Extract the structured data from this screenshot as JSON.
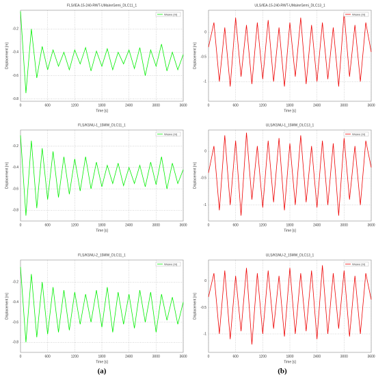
{
  "panel_labels": [
    "(a)",
    "(b)"
  ],
  "chart_data": [
    {
      "type": "line",
      "title": "FLS/IEA-15-240-RWT-UMaineSemi_DLC11_1",
      "xlabel": "Time [s]",
      "ylabel": "Displacement [m]",
      "legend": "upper right",
      "grid": true,
      "x": [
        0,
        120,
        240,
        360,
        480,
        600,
        720,
        840,
        960,
        1080,
        1200,
        1320,
        1440,
        1560,
        1680,
        1800,
        1920,
        2040,
        2160,
        2280,
        2400,
        2520,
        2640,
        2760,
        2880,
        3000,
        3120,
        3240,
        3360,
        3480,
        3600
      ],
      "series": [
        {
          "name": "Weave [m]",
          "color": "#00ee00",
          "values": [
            -0.05,
            -0.75,
            -0.2,
            -0.62,
            -0.35,
            -0.55,
            -0.38,
            -0.52,
            -0.4,
            -0.55,
            -0.38,
            -0.5,
            -0.36,
            -0.56,
            -0.39,
            -0.52,
            -0.37,
            -0.55,
            -0.4,
            -0.5,
            -0.38,
            -0.54,
            -0.36,
            -0.6,
            -0.38,
            -0.52,
            -0.33,
            -0.56,
            -0.4,
            -0.55,
            -0.42
          ]
        }
      ],
      "xlim": [
        0,
        3600
      ],
      "xticks": [
        0,
        600,
        1200,
        1800,
        2400,
        3000,
        3600
      ],
      "ylim": [
        -0.82,
        -0.04
      ],
      "yticks": [
        -0.8,
        -0.6,
        -0.4,
        -0.2
      ]
    },
    {
      "type": "line",
      "title": "ULS/IEA-15-240-RWT-UMaineSemi_DLC13_1",
      "xlabel": "Time [s]",
      "ylabel": "Displacement [m]",
      "legend": "upper right",
      "grid": true,
      "x": [
        0,
        120,
        240,
        360,
        480,
        600,
        720,
        840,
        960,
        1080,
        1200,
        1320,
        1440,
        1560,
        1680,
        1800,
        1920,
        2040,
        2160,
        2280,
        2400,
        2520,
        2640,
        2760,
        2880,
        3000,
        3120,
        3240,
        3360,
        3480,
        3600
      ],
      "series": [
        {
          "name": "Weave [m]",
          "color": "#ee0000",
          "values": [
            -0.3,
            0.2,
            -1.0,
            0.1,
            -1.1,
            0.3,
            -0.9,
            0.15,
            -1.05,
            0.2,
            -0.95,
            0.25,
            -1.0,
            0.1,
            -1.1,
            0.2,
            -0.9,
            0.3,
            -1.05,
            0.15,
            -1.0,
            0.2,
            -0.95,
            0.1,
            -1.1,
            0.4,
            -0.9,
            0.15,
            -1.0,
            0.2,
            -0.4
          ]
        }
      ],
      "xlim": [
        0,
        3600
      ],
      "xticks": [
        0,
        600,
        1200,
        1800,
        2400,
        3000,
        3600
      ],
      "ylim": [
        -1.4,
        0.45
      ],
      "yticks": [
        -1,
        -0.5,
        0
      ]
    },
    {
      "type": "line",
      "title": "FLS/KSNU-1_15MW_DLC11_1",
      "xlabel": "Time [s]",
      "ylabel": "Displacement [m]",
      "legend": "upper right",
      "grid": true,
      "x": [
        0,
        120,
        240,
        360,
        480,
        600,
        720,
        840,
        960,
        1080,
        1200,
        1320,
        1440,
        1560,
        1680,
        1800,
        1920,
        2040,
        2160,
        2280,
        2400,
        2520,
        2640,
        2760,
        2880,
        3000,
        3120,
        3240,
        3360,
        3480,
        3600
      ],
      "series": [
        {
          "name": "Weave [m]",
          "color": "#00ee00",
          "values": [
            -0.1,
            -0.85,
            -0.15,
            -0.78,
            -0.22,
            -0.7,
            -0.25,
            -0.68,
            -0.3,
            -0.65,
            -0.32,
            -0.62,
            -0.3,
            -0.6,
            -0.35,
            -0.58,
            -0.38,
            -0.55,
            -0.36,
            -0.57,
            -0.4,
            -0.55,
            -0.38,
            -0.58,
            -0.35,
            -0.56,
            -0.3,
            -0.6,
            -0.36,
            -0.55,
            -0.42
          ]
        }
      ],
      "xlim": [
        0,
        3600
      ],
      "xticks": [
        0,
        600,
        1200,
        1800,
        2400,
        3000,
        3600
      ],
      "ylim": [
        -0.9,
        -0.05
      ],
      "yticks": [
        -0.8,
        -0.6,
        -0.4,
        -0.2
      ]
    },
    {
      "type": "line",
      "title": "ULS/KSNU-1_15MW_DLC13_1",
      "xlabel": "Time [s]",
      "ylabel": "Displacement [m]",
      "legend": "upper right",
      "grid": true,
      "x": [
        0,
        120,
        240,
        360,
        480,
        600,
        720,
        840,
        960,
        1080,
        1200,
        1320,
        1440,
        1560,
        1680,
        1800,
        1920,
        2040,
        2160,
        2280,
        2400,
        2520,
        2640,
        2760,
        2880,
        3000,
        3120,
        3240,
        3360,
        3480,
        3600
      ],
      "series": [
        {
          "name": "Weave [m]",
          "color": "#ee0000",
          "values": [
            -0.4,
            0.1,
            -1.1,
            0.3,
            -1.0,
            0.2,
            -1.2,
            0.35,
            -0.9,
            0.1,
            -1.05,
            0.2,
            -0.95,
            0.25,
            -1.1,
            0.15,
            -1.0,
            0.3,
            -0.95,
            0.1,
            -1.05,
            0.2,
            -1.0,
            0.15,
            -1.2,
            0.25,
            -0.9,
            0.1,
            -1.0,
            0.2,
            -0.3
          ]
        }
      ],
      "xlim": [
        0,
        3600
      ],
      "xticks": [
        0,
        600,
        1200,
        1800,
        2400,
        3000,
        3600
      ],
      "ylim": [
        -1.3,
        0.4
      ],
      "yticks": [
        -1,
        -0.5,
        0
      ]
    },
    {
      "type": "line",
      "title": "FLS/KSNU-2_15MW_DLC11_1",
      "xlabel": "Time [s]",
      "ylabel": "Displacement [m]",
      "legend": "upper right",
      "grid": true,
      "x": [
        0,
        120,
        240,
        360,
        480,
        600,
        720,
        840,
        960,
        1080,
        1200,
        1320,
        1440,
        1560,
        1680,
        1800,
        1920,
        2040,
        2160,
        2280,
        2400,
        2520,
        2640,
        2760,
        2880,
        3000,
        3120,
        3240,
        3360,
        3480,
        3600
      ],
      "series": [
        {
          "name": "Weave [m]",
          "color": "#00ee00",
          "values": [
            -0.05,
            -0.8,
            -0.12,
            -0.75,
            -0.2,
            -0.72,
            -0.25,
            -0.7,
            -0.28,
            -0.68,
            -0.3,
            -0.62,
            -0.32,
            -0.6,
            -0.28,
            -0.65,
            -0.25,
            -0.7,
            -0.3,
            -0.62,
            -0.32,
            -0.66,
            -0.28,
            -0.6,
            -0.3,
            -0.7,
            -0.32,
            -0.58,
            -0.35,
            -0.62,
            -0.4
          ]
        }
      ],
      "xlim": [
        0,
        3600
      ],
      "xticks": [
        0,
        600,
        1200,
        1800,
        2400,
        3000,
        3600
      ],
      "ylim": [
        -0.9,
        0.02
      ],
      "yticks": [
        -0.8,
        -0.6,
        -0.4,
        -0.2
      ]
    },
    {
      "type": "line",
      "title": "ULS/KSNU-2_15MW_DLC13_1",
      "xlabel": "Time [s]",
      "ylabel": "Displacement [m]",
      "legend": "upper right",
      "grid": true,
      "x": [
        0,
        120,
        240,
        360,
        480,
        600,
        720,
        840,
        960,
        1080,
        1200,
        1320,
        1440,
        1560,
        1680,
        1800,
        1920,
        2040,
        2160,
        2280,
        2400,
        2520,
        2640,
        2760,
        2880,
        3000,
        3120,
        3240,
        3360,
        3480,
        3600
      ],
      "series": [
        {
          "name": "Weave [m]",
          "color": "#ee0000",
          "values": [
            -0.3,
            0.15,
            -1.0,
            0.2,
            -1.1,
            0.1,
            -0.95,
            0.25,
            -1.2,
            0.15,
            -1.0,
            0.2,
            -0.9,
            0.1,
            -1.05,
            0.25,
            -1.0,
            0.15,
            -0.95,
            0.2,
            -1.1,
            0.3,
            -1.0,
            0.15,
            -0.9,
            0.2,
            -1.05,
            0.1,
            -1.0,
            0.15,
            -0.35
          ]
        }
      ],
      "xlim": [
        0,
        3600
      ],
      "xticks": [
        0,
        600,
        1200,
        1800,
        2400,
        3000,
        3600
      ],
      "ylim": [
        -1.35,
        0.4
      ],
      "yticks": [
        -1,
        -0.5,
        0
      ]
    }
  ]
}
